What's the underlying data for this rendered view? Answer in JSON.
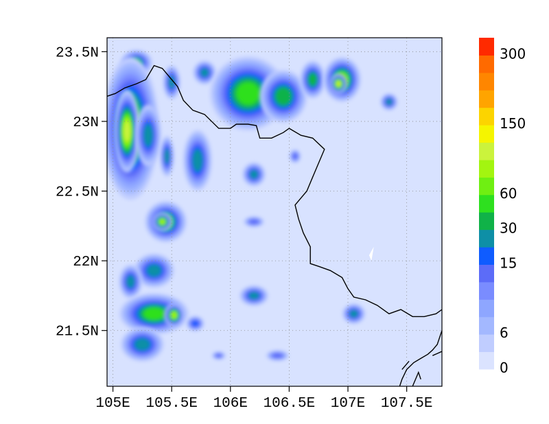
{
  "map": {
    "lon_range": [
      104.95,
      107.8
    ],
    "lat_range": [
      21.1,
      23.6
    ],
    "background_color": "#d8e2ff",
    "x_ticks": [
      {
        "value": 105.0,
        "label": "105E"
      },
      {
        "value": 105.5,
        "label": "105.5E"
      },
      {
        "value": 106.0,
        "label": "106E"
      },
      {
        "value": 106.5,
        "label": "106.5E"
      },
      {
        "value": 107.0,
        "label": "107E"
      },
      {
        "value": 107.5,
        "label": "107.5E"
      }
    ],
    "y_ticks": [
      {
        "value": 21.5,
        "label": "21.5N"
      },
      {
        "value": 22.0,
        "label": "22N"
      },
      {
        "value": 22.5,
        "label": "22.5N"
      },
      {
        "value": 23.0,
        "label": "23N"
      },
      {
        "value": 23.5,
        "label": "23.5N"
      }
    ],
    "grid": "dotted",
    "border_line": [
      [
        104.95,
        23.18
      ],
      [
        105.02,
        23.2
      ],
      [
        105.1,
        23.24
      ],
      [
        105.2,
        23.27
      ],
      [
        105.28,
        23.3
      ],
      [
        105.35,
        23.4
      ],
      [
        105.42,
        23.38
      ],
      [
        105.5,
        23.3
      ],
      [
        105.55,
        23.25
      ],
      [
        105.6,
        23.15
      ],
      [
        105.68,
        23.08
      ],
      [
        105.78,
        23.05
      ],
      [
        105.9,
        22.95
      ],
      [
        106.0,
        22.95
      ],
      [
        106.05,
        22.98
      ],
      [
        106.15,
        22.98
      ],
      [
        106.22,
        22.97
      ],
      [
        106.25,
        22.88
      ],
      [
        106.35,
        22.88
      ],
      [
        106.45,
        22.92
      ],
      [
        106.5,
        22.95
      ],
      [
        106.6,
        22.9
      ],
      [
        106.7,
        22.88
      ],
      [
        106.8,
        22.8
      ],
      [
        106.75,
        22.7
      ],
      [
        106.7,
        22.6
      ],
      [
        106.65,
        22.5
      ],
      [
        106.6,
        22.45
      ],
      [
        106.55,
        22.4
      ],
      [
        106.58,
        22.3
      ],
      [
        106.62,
        22.2
      ],
      [
        106.68,
        22.1
      ],
      [
        106.68,
        21.98
      ],
      [
        106.75,
        21.96
      ],
      [
        106.85,
        21.93
      ],
      [
        106.95,
        21.88
      ],
      [
        107.0,
        21.8
      ],
      [
        107.05,
        21.74
      ],
      [
        107.15,
        21.72
      ],
      [
        107.25,
        21.68
      ],
      [
        107.35,
        21.62
      ],
      [
        107.45,
        21.65
      ],
      [
        107.55,
        21.6
      ],
      [
        107.65,
        21.6
      ],
      [
        107.75,
        21.62
      ],
      [
        107.8,
        21.65
      ]
    ],
    "coast_lines": [
      [
        [
          107.8,
          21.5
        ],
        [
          107.76,
          21.4
        ],
        [
          107.72,
          21.36
        ],
        [
          107.68,
          21.33
        ],
        [
          107.62,
          21.3
        ],
        [
          107.56,
          21.27
        ],
        [
          107.5,
          21.22
        ],
        [
          107.46,
          21.15
        ],
        [
          107.44,
          21.1
        ]
      ],
      [
        [
          107.8,
          21.35
        ],
        [
          107.72,
          21.32
        ]
      ],
      [
        [
          107.55,
          21.1
        ],
        [
          107.6,
          21.2
        ],
        [
          107.62,
          21.15
        ]
      ],
      [
        [
          107.46,
          21.22
        ],
        [
          107.52,
          21.28
        ]
      ]
    ],
    "white_patch": [
      [
        107.18,
        22.04
      ],
      [
        107.22,
        22.1
      ],
      [
        107.2,
        22.0
      ],
      [
        107.18,
        22.04
      ]
    ],
    "precip_cells": [
      {
        "lon": 105.2,
        "lat": 23.42,
        "rx": 0.1,
        "ry": 0.07,
        "level": 8
      },
      {
        "lon": 105.15,
        "lat": 22.95,
        "rx": 0.15,
        "ry": 0.32,
        "level": 10
      },
      {
        "lon": 105.12,
        "lat": 22.93,
        "rx": 0.06,
        "ry": 0.16,
        "level": 12
      },
      {
        "lon": 105.3,
        "lat": 22.9,
        "rx": 0.09,
        "ry": 0.18,
        "level": 7
      },
      {
        "lon": 105.5,
        "lat": 23.28,
        "rx": 0.06,
        "ry": 0.1,
        "level": 7
      },
      {
        "lon": 105.72,
        "lat": 22.72,
        "rx": 0.1,
        "ry": 0.18,
        "level": 7
      },
      {
        "lon": 105.46,
        "lat": 22.75,
        "rx": 0.05,
        "ry": 0.12,
        "level": 7
      },
      {
        "lon": 105.78,
        "lat": 23.35,
        "rx": 0.08,
        "ry": 0.07,
        "level": 7
      },
      {
        "lon": 106.15,
        "lat": 23.2,
        "rx": 0.22,
        "ry": 0.18,
        "level": 9
      },
      {
        "lon": 106.45,
        "lat": 23.18,
        "rx": 0.15,
        "ry": 0.14,
        "level": 8
      },
      {
        "lon": 106.7,
        "lat": 23.3,
        "rx": 0.08,
        "ry": 0.1,
        "level": 8
      },
      {
        "lon": 106.95,
        "lat": 23.3,
        "rx": 0.1,
        "ry": 0.1,
        "level": 10
      },
      {
        "lon": 106.92,
        "lat": 23.27,
        "rx": 0.04,
        "ry": 0.04,
        "level": 12
      },
      {
        "lon": 107.35,
        "lat": 23.14,
        "rx": 0.06,
        "ry": 0.05,
        "level": 7
      },
      {
        "lon": 106.2,
        "lat": 22.62,
        "rx": 0.08,
        "ry": 0.07,
        "level": 7
      },
      {
        "lon": 106.2,
        "lat": 22.28,
        "rx": 0.09,
        "ry": 0.04,
        "level": 5
      },
      {
        "lon": 106.55,
        "lat": 22.75,
        "rx": 0.05,
        "ry": 0.05,
        "level": 5
      },
      {
        "lon": 105.45,
        "lat": 22.28,
        "rx": 0.12,
        "ry": 0.1,
        "level": 9
      },
      {
        "lon": 105.42,
        "lat": 22.28,
        "rx": 0.05,
        "ry": 0.04,
        "level": 11
      },
      {
        "lon": 105.35,
        "lat": 21.93,
        "rx": 0.14,
        "ry": 0.1,
        "level": 7
      },
      {
        "lon": 105.15,
        "lat": 21.85,
        "rx": 0.08,
        "ry": 0.1,
        "level": 7
      },
      {
        "lon": 105.35,
        "lat": 21.62,
        "rx": 0.2,
        "ry": 0.1,
        "level": 9
      },
      {
        "lon": 105.52,
        "lat": 21.61,
        "rx": 0.05,
        "ry": 0.05,
        "level": 11
      },
      {
        "lon": 105.25,
        "lat": 21.4,
        "rx": 0.15,
        "ry": 0.1,
        "level": 7
      },
      {
        "lon": 105.7,
        "lat": 21.55,
        "rx": 0.07,
        "ry": 0.05,
        "level": 6
      },
      {
        "lon": 106.2,
        "lat": 21.75,
        "rx": 0.1,
        "ry": 0.06,
        "level": 7
      },
      {
        "lon": 106.4,
        "lat": 21.32,
        "rx": 0.1,
        "ry": 0.04,
        "level": 5
      },
      {
        "lon": 107.05,
        "lat": 21.62,
        "rx": 0.08,
        "ry": 0.06,
        "level": 7
      },
      {
        "lon": 105.9,
        "lat": 21.32,
        "rx": 0.06,
        "ry": 0.03,
        "level": 5
      }
    ]
  },
  "colorbar": {
    "colors": [
      "#dbe3ff",
      "#c0cdff",
      "#a3b8ff",
      "#8ea6ff",
      "#7a8cff",
      "#5c6cf8",
      "#0f5cff",
      "#0e8fa6",
      "#10b248",
      "#2ee01f",
      "#6fef12",
      "#a3f510",
      "#cbf33c",
      "#f5f500",
      "#fcd400",
      "#ffa400",
      "#ff8600",
      "#ff6a00",
      "#ff2a00"
    ],
    "labels": [
      {
        "index": 0,
        "text": "0"
      },
      {
        "index": 2,
        "text": "6"
      },
      {
        "index": 6,
        "text": "15"
      },
      {
        "index": 8,
        "text": "30"
      },
      {
        "index": 10,
        "text": "60"
      },
      {
        "index": 14,
        "text": "150"
      },
      {
        "index": 18,
        "text": "300"
      }
    ]
  }
}
